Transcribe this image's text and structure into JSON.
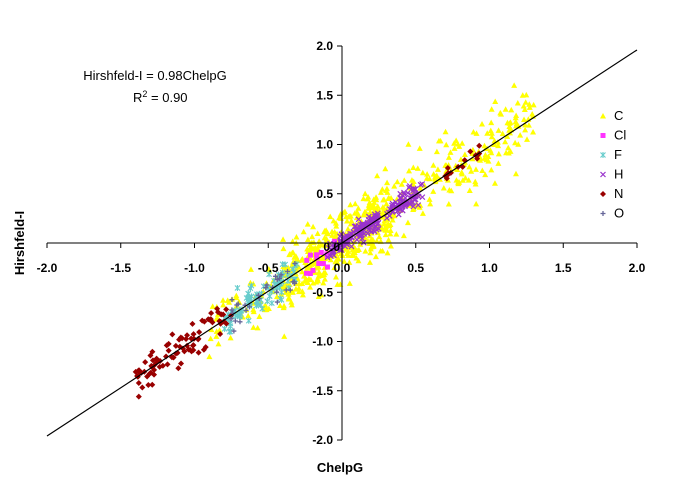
{
  "chart_data": {
    "type": "scatter",
    "title": "",
    "xlabel": "ChelpG",
    "ylabel": "Hirshfeld-I",
    "xlim": [
      -2.0,
      2.0
    ],
    "ylim": [
      -2.0,
      2.0
    ],
    "x_ticks": [
      "-2.0",
      "-1.5",
      "-1.0",
      "-0.5",
      "0.0",
      "0.5",
      "1.0",
      "1.5",
      "2.0"
    ],
    "y_ticks": [
      "-2.0",
      "-1.5",
      "-1.0",
      "-0.5",
      "0.0",
      "0.5",
      "1.0",
      "1.5",
      "2.0"
    ],
    "grid": false,
    "legend_position": "right",
    "annotation": {
      "equation": "Hirshfeld-I = 0.98ChelpG",
      "r2_prefix": "R",
      "r2_sup": "2",
      "r2_value": " = 0.90"
    },
    "fit_line": {
      "slope": 0.98,
      "intercept": 0.0,
      "x_range": [
        -2.0,
        2.0
      ],
      "color": "#000000"
    },
    "series": [
      {
        "name": "C",
        "marker": "triangle",
        "color": "#ffff00",
        "clusters": [
          {
            "x": [
              -0.4,
              0.35
            ],
            "slope": 1.0,
            "spread": 0.16,
            "count": 420,
            "xr": [
              -0.4,
              0.35
            ]
          },
          {
            "x": [
              0.35,
              1.3
            ],
            "slope": 1.0,
            "spread": 0.18,
            "count": 200,
            "xr": [
              0.35,
              1.3
            ]
          },
          {
            "x": [
              -0.9,
              -0.35
            ],
            "slope": 1.0,
            "spread": 0.14,
            "count": 70,
            "xr": [
              -0.9,
              -0.35
            ]
          }
        ]
      },
      {
        "name": "Cl",
        "marker": "square",
        "color": "#ff33ff",
        "clusters": [
          {
            "count": 15,
            "xr": [
              -0.25,
              -0.05
            ],
            "slope": 1.0,
            "spread": 0.06
          }
        ]
      },
      {
        "name": "F",
        "marker": "star",
        "color": "#66cccc",
        "clusters": [
          {
            "count": 90,
            "xr": [
              -0.8,
              -0.3
            ],
            "slope": 1.0,
            "spread": 0.08
          }
        ]
      },
      {
        "name": "H",
        "marker": "x",
        "color": "#9933cc",
        "clusters": [
          {
            "count": 140,
            "xr": [
              -0.1,
              0.25
            ],
            "slope": 1.0,
            "spread": 0.05
          },
          {
            "count": 70,
            "xr": [
              0.3,
              0.55
            ],
            "slope": 1.0,
            "spread": 0.05
          }
        ]
      },
      {
        "name": "N",
        "marker": "diamond",
        "color": "#990000",
        "clusters": [
          {
            "count": 90,
            "xr": [
              -1.4,
              -0.75
            ],
            "slope": 1.0,
            "spread": 0.1
          },
          {
            "count": 15,
            "xr": [
              0.7,
              0.95
            ],
            "slope": 1.0,
            "spread": 0.05
          }
        ]
      },
      {
        "name": "O",
        "marker": "plus",
        "color": "#666699",
        "clusters": [
          {
            "count": 30,
            "xr": [
              -0.8,
              -0.3
            ],
            "slope": 1.0,
            "spread": 0.08
          }
        ]
      }
    ]
  }
}
